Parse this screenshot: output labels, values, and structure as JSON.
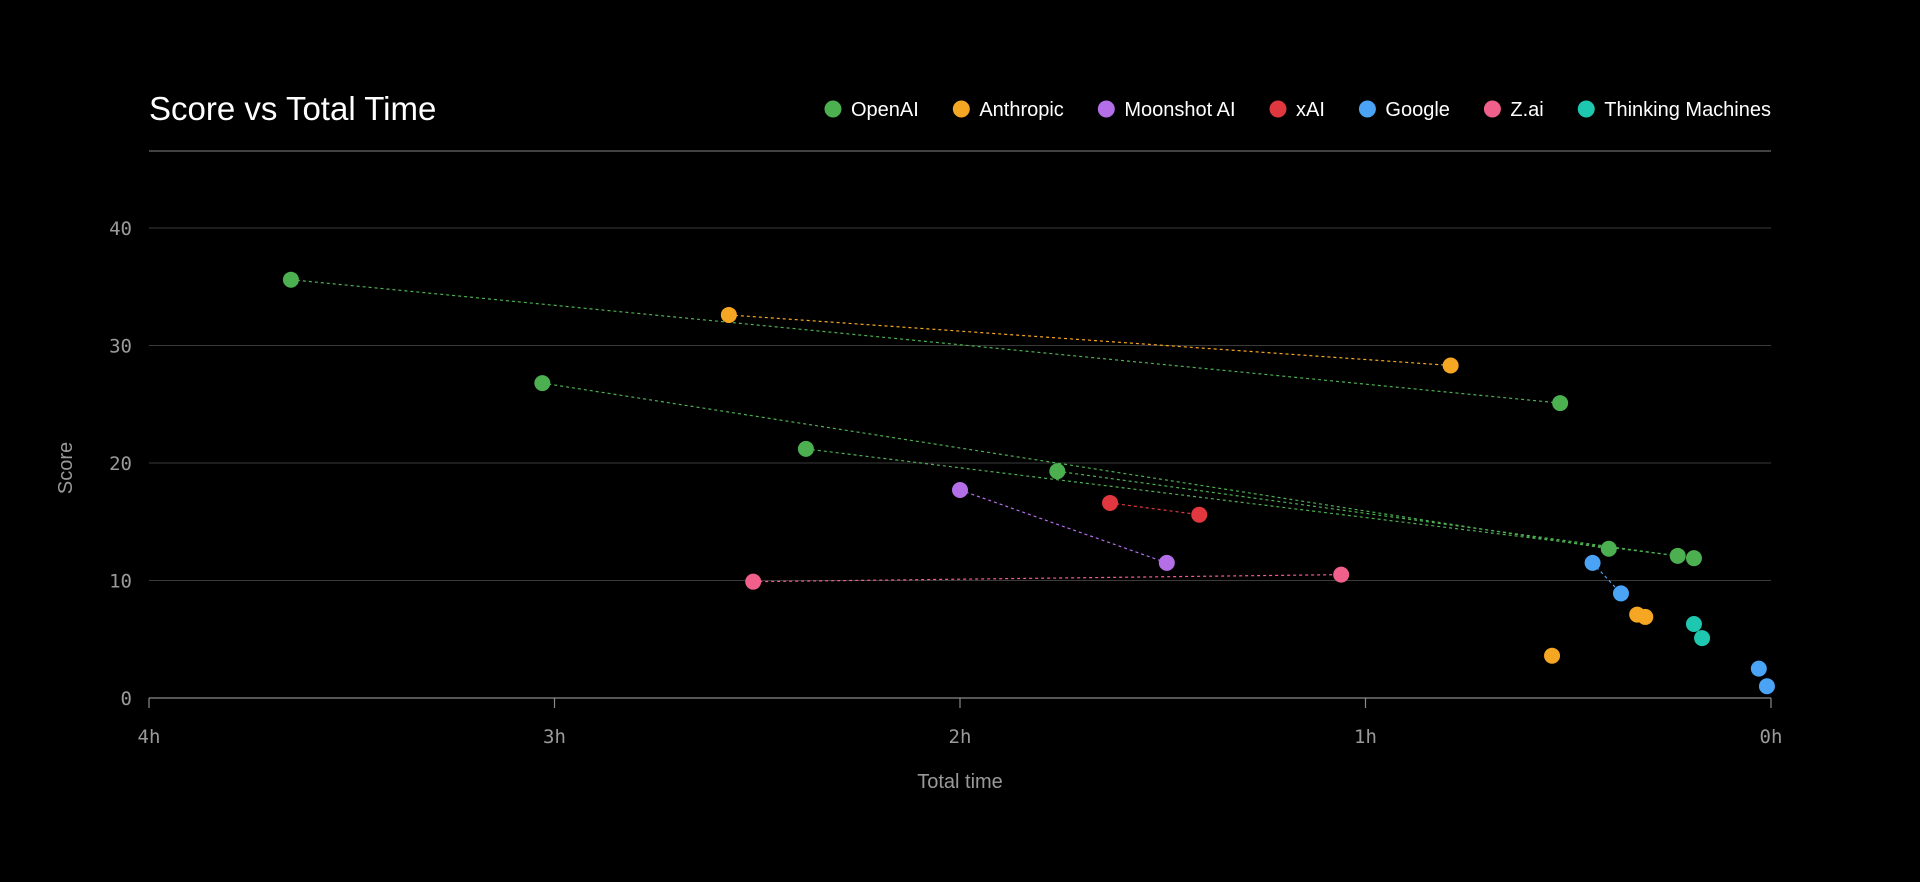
{
  "chart_data": {
    "type": "scatter",
    "title": "Score vs Total Time",
    "xlabel": "Total time",
    "ylabel": "Score",
    "x_unit": "hours",
    "x_axis_reversed": true,
    "xlim": [
      4,
      0
    ],
    "ylim": [
      0,
      40
    ],
    "x_ticks": [
      {
        "value": 4,
        "label": "4h"
      },
      {
        "value": 3,
        "label": "3h"
      },
      {
        "value": 2,
        "label": "2h"
      },
      {
        "value": 1,
        "label": "1h"
      },
      {
        "value": 0,
        "label": "0h"
      }
    ],
    "y_ticks": [
      {
        "value": 0,
        "label": "0"
      },
      {
        "value": 10,
        "label": "10"
      },
      {
        "value": 20,
        "label": "20"
      },
      {
        "value": 30,
        "label": "30"
      },
      {
        "value": 40,
        "label": "40"
      }
    ],
    "grid": true,
    "legend_position": "top-right",
    "series": [
      {
        "name": "OpenAI",
        "color": "#4caf50",
        "points": [
          {
            "x": 3.65,
            "y": 35.6
          },
          {
            "x": 3.03,
            "y": 26.8
          },
          {
            "x": 2.38,
            "y": 21.2
          },
          {
            "x": 1.76,
            "y": 19.3
          },
          {
            "x": 0.52,
            "y": 25.1
          },
          {
            "x": 0.4,
            "y": 12.7
          },
          {
            "x": 0.23,
            "y": 12.1
          },
          {
            "x": 0.19,
            "y": 11.9
          }
        ],
        "connections": [
          [
            0,
            4
          ],
          [
            1,
            5
          ],
          [
            2,
            6
          ],
          [
            3,
            7
          ]
        ]
      },
      {
        "name": "Anthropic",
        "color": "#f5a623",
        "points": [
          {
            "x": 2.57,
            "y": 32.6
          },
          {
            "x": 0.79,
            "y": 28.3
          },
          {
            "x": 0.54,
            "y": 3.6
          },
          {
            "x": 0.33,
            "y": 7.1
          },
          {
            "x": 0.31,
            "y": 6.9
          }
        ],
        "connections": [
          [
            0,
            1
          ]
        ]
      },
      {
        "name": "Moonshot AI",
        "color": "#b36ee8",
        "points": [
          {
            "x": 2.0,
            "y": 17.7
          },
          {
            "x": 1.49,
            "y": 11.5
          }
        ],
        "connections": [
          [
            0,
            1
          ]
        ]
      },
      {
        "name": "xAI",
        "color": "#e0383e",
        "points": [
          {
            "x": 1.63,
            "y": 16.6
          },
          {
            "x": 1.41,
            "y": 15.6
          }
        ],
        "connections": [
          [
            0,
            1
          ]
        ]
      },
      {
        "name": "Google",
        "color": "#4aa3f5",
        "points": [
          {
            "x": 0.44,
            "y": 11.5
          },
          {
            "x": 0.37,
            "y": 8.9
          },
          {
            "x": 0.03,
            "y": 2.5
          },
          {
            "x": 0.01,
            "y": 1.0
          }
        ],
        "connections": [
          [
            0,
            1
          ]
        ]
      },
      {
        "name": "Z.ai",
        "color": "#f0608a",
        "points": [
          {
            "x": 2.51,
            "y": 9.9
          },
          {
            "x": 1.06,
            "y": 10.5
          }
        ],
        "connections": [
          [
            0,
            1
          ]
        ]
      },
      {
        "name": "Thinking Machines",
        "color": "#1ec8b0",
        "points": [
          {
            "x": 0.19,
            "y": 6.3
          },
          {
            "x": 0.17,
            "y": 5.1
          }
        ],
        "connections": [
          [
            0,
            1
          ]
        ]
      }
    ]
  }
}
